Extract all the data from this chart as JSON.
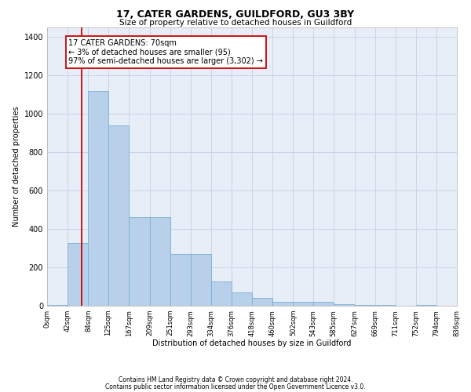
{
  "title1": "17, CATER GARDENS, GUILDFORD, GU3 3BY",
  "title2": "Size of property relative to detached houses in Guildford",
  "xlabel": "Distribution of detached houses by size in Guildford",
  "ylabel": "Number of detached properties",
  "footer1": "Contains HM Land Registry data © Crown copyright and database right 2024.",
  "footer2": "Contains public sector information licensed under the Open Government Licence v3.0.",
  "annotation_line1": "17 CATER GARDENS: 70sqm",
  "annotation_line2": "← 3% of detached houses are smaller (95)",
  "annotation_line3": "97% of semi-detached houses are larger (3,302) →",
  "bar_color": "#b8d0ea",
  "bar_edge_color": "#7aafd4",
  "vline_color": "#cc0000",
  "vline_x": 70,
  "ylim": [
    0,
    1450
  ],
  "bin_edges": [
    0,
    42,
    84,
    125,
    167,
    209,
    251,
    293,
    334,
    376,
    418,
    460,
    502,
    543,
    585,
    627,
    669,
    711,
    752,
    794,
    836
  ],
  "bar_heights": [
    5,
    325,
    1120,
    940,
    460,
    460,
    270,
    270,
    125,
    70,
    40,
    20,
    20,
    20,
    10,
    5,
    5,
    0,
    5,
    0
  ],
  "tick_labels": [
    "0sqm",
    "42sqm",
    "84sqm",
    "125sqm",
    "167sqm",
    "209sqm",
    "251sqm",
    "293sqm",
    "334sqm",
    "376sqm",
    "418sqm",
    "460sqm",
    "502sqm",
    "543sqm",
    "585sqm",
    "627sqm",
    "669sqm",
    "711sqm",
    "752sqm",
    "794sqm",
    "836sqm"
  ],
  "grid_color": "#c8d4e8",
  "bg_color": "#e8eef8",
  "title1_fontsize": 9,
  "title2_fontsize": 7.5,
  "xlabel_fontsize": 7,
  "ylabel_fontsize": 7,
  "tick_fontsize": 6,
  "ytick_fontsize": 7,
  "footer_fontsize": 5.5,
  "annot_fontsize": 7
}
